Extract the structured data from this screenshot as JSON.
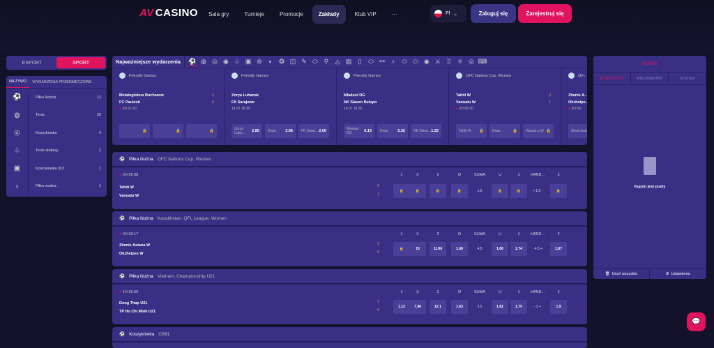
{
  "header": {
    "logo_mark": "AV",
    "logo_text": "CASINO",
    "nav": [
      "Sala gry",
      "Turnieje",
      "Promocje",
      "Zakłady",
      "Klub VIP",
      "···"
    ],
    "active_nav": 3,
    "lang": "Pl",
    "login": "Zaloguj się",
    "register": "Zarejestruj się"
  },
  "colors": {
    "accent": "#e0145e",
    "panel": "#3a2f85",
    "background": "#14112a"
  },
  "sidebar": {
    "modes": [
      "ESPORT",
      "SPORT"
    ],
    "active_mode": 1,
    "tabs": [
      "NA ŻYWO",
      "WYDARZENIA PRZEDMECZOWE"
    ],
    "items": [
      {
        "icon": "soccer-ball-icon",
        "glyph": "⚽",
        "label": "Piłka Nożna",
        "count": "12"
      },
      {
        "icon": "tennis-ball-icon",
        "glyph": "◍",
        "label": "Tenis",
        "count": "20"
      },
      {
        "icon": "basketball-icon",
        "glyph": "◎",
        "label": "Koszykówka",
        "count": "4"
      },
      {
        "icon": "table-tennis-icon",
        "glyph": "♧",
        "label": "Tenis stołowy",
        "count": "2"
      },
      {
        "icon": "basketball-3x3-icon",
        "glyph": "▣",
        "label": "Koszykówka 3x3",
        "count": "1"
      },
      {
        "icon": "water-polo-icon",
        "glyph": "♁",
        "label": "Piłka wodna",
        "count": "1"
      }
    ]
  },
  "featured": {
    "title": "Najważniejsze wydarzenia",
    "sport_icons": [
      "⚽",
      "◍",
      "◎",
      "◉",
      "♧",
      "▣",
      "⊛",
      "◐",
      "✪",
      "◫",
      "✎",
      "⬭",
      "⚲",
      "△",
      "▤",
      "▯",
      "⬭",
      "⚯",
      "♁",
      "⬭",
      "⬭",
      "◉",
      "⚔",
      "♖",
      "♕",
      "◎",
      "⌨"
    ],
    "cards": [
      {
        "league": "Friendly Games",
        "home": "Metaloglobus Bucharest",
        "away": "FC Paulesti",
        "hs": "2",
        "as": "0",
        "time": "1H  21:20",
        "live": true,
        "odds": [
          {
            "l": "",
            "v": "🔒"
          },
          {
            "l": "",
            "v": "🔒"
          },
          {
            "l": "",
            "v": "🔒"
          }
        ]
      },
      {
        "league": "Friendly Games",
        "home": "Zorya Luhansk",
        "away": "FK Sarajewo",
        "time": "14.07  18:30",
        "odds": [
          {
            "l": "Zorya Luha...",
            "v": "2.85"
          },
          {
            "l": "Draw",
            "v": "3.66"
          },
          {
            "l": "FK Saraj...",
            "v": "2.06"
          }
        ]
      },
      {
        "league": "Friendly Games",
        "home": "Mladost DG",
        "away": "NK Slaven Belupo",
        "time": "14.07  18:30",
        "odds": [
          {
            "l": "Mladost DG",
            "v": "6.13"
          },
          {
            "l": "Draw",
            "v": "5.32"
          },
          {
            "l": "NK Slave...",
            "v": "1.25"
          }
        ]
      },
      {
        "league": "OFC Nations Cup. Women",
        "home": "Tahiti W",
        "away": "Vanuatu W",
        "hs": "0",
        "as": "1",
        "time": "2H  66:30",
        "live": true,
        "odds": [
          {
            "l": "Tahiti W",
            "v": "🔒"
          },
          {
            "l": "Draw",
            "v": "🔒"
          },
          {
            "l": "Vanuat u W",
            "v": "🔒"
          }
        ]
      },
      {
        "league": "QFL",
        "home": "Zhenis A...",
        "away": "Okzhetpe...",
        "time": "2H  66:",
        "live": true,
        "odds": [
          {
            "l": "Zheni Asta...",
            "v": ""
          }
        ]
      }
    ]
  },
  "columns": [
    "1",
    "X",
    "2",
    "O",
    "SUMA",
    "U",
    "1",
    "HAND...",
    "2"
  ],
  "matches": [
    {
      "sport": "Piłka Nożna",
      "league": "OFC Nations Cup. Women",
      "time": "2H  66:38",
      "home": "Tahiti W",
      "away": "Vanuatu W",
      "hs": "0",
      "as": "1",
      "odds": [
        "🔒",
        "🔒",
        "🔒",
        "🔒",
        "1.5",
        "🔒",
        "🔒",
        "+ 1.5 -",
        "🔒"
      ]
    },
    {
      "sport": "Piłka Nożna",
      "league": "Kazakhstan. QFL League. Women",
      "time": "2H  66:17",
      "home": "Zhenis Astana W",
      "away": "Okzhetpes W",
      "hs": "3",
      "as": "0",
      "odds": [
        "🔒",
        "15",
        "11.96",
        "1.68",
        "4.5",
        "1.86",
        "1.74",
        "- 4.5 +",
        "1.87"
      ]
    },
    {
      "sport": "Piłka Nożna",
      "league": "Vietnam. Championship U21",
      "time": "1H  25:00",
      "home": "Dong Thap U21",
      "away": "TP Ho Chi Minh U21",
      "hs": "1",
      "as": "0",
      "odds": [
        "1.12",
        "7.98",
        "12.1",
        "1.63",
        "3.5",
        "1.82",
        "1.75",
        "- 2 +",
        "1.9"
      ]
    },
    {
      "sport": "Koszykówka",
      "league": "CBBL"
    }
  ],
  "coupon": {
    "title": "KUPON",
    "tabs": [
      "POJEDYNCZY",
      "WIELOKROTNY",
      "SYSTEM"
    ],
    "empty": "Kupon jest pusty",
    "clear": "Usuń wszystko",
    "settings": "Ustawienia"
  }
}
